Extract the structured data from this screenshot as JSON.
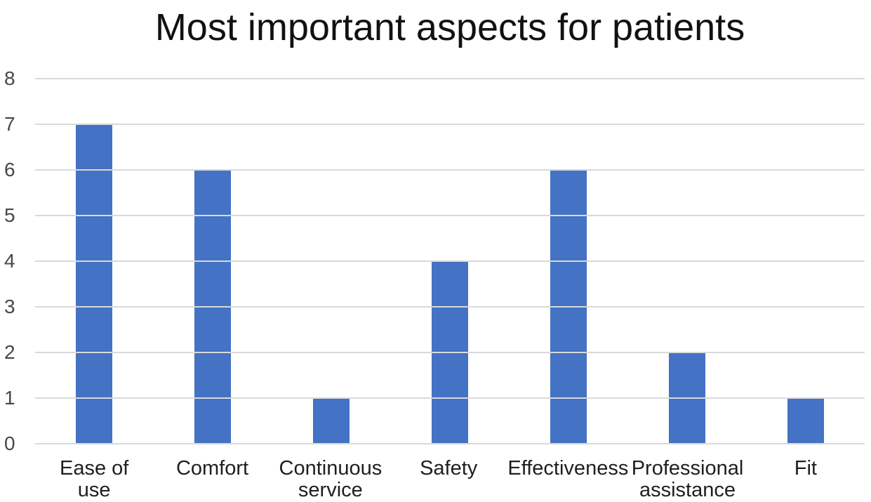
{
  "chart_data": {
    "type": "bar",
    "title": "Most important aspects for patients",
    "categories": [
      "Ease of use",
      "Comfort",
      "Continuous service",
      "Safety",
      "Effectiveness",
      "Professional assistance",
      "Fit"
    ],
    "categories_display": [
      "Ease of\nuse",
      "Comfort",
      "Continuous\nservice",
      "Safety",
      "Effectiveness",
      "Professional\nassistance",
      "Fit"
    ],
    "values": [
      7,
      6,
      1,
      4,
      6,
      2,
      1
    ],
    "xlabel": "",
    "ylabel": "",
    "ylim": [
      0,
      8
    ],
    "yticks": [
      0,
      1,
      2,
      3,
      4,
      5,
      6,
      7,
      8
    ],
    "grid": "horizontal",
    "legend": "none",
    "colors": {
      "bar": "#4472c4",
      "gridline": "#d9d9d9",
      "tick_label": "#474747",
      "category_label": "#1f1f1f",
      "title": "#111111",
      "background": "#ffffff"
    }
  }
}
